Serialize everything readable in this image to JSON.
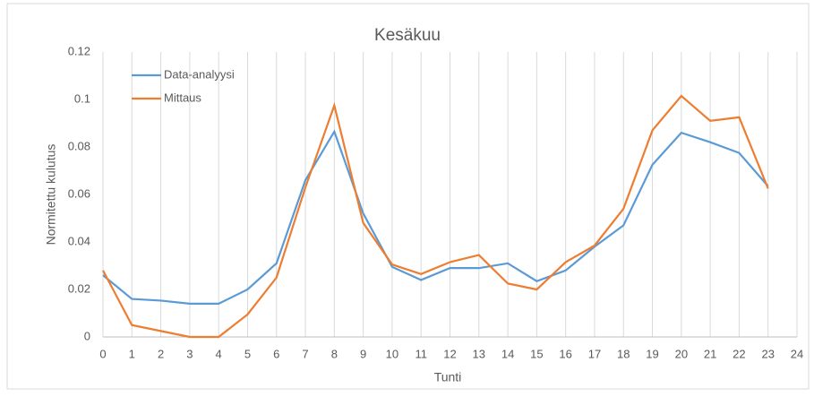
{
  "chart_data": {
    "type": "line",
    "title": "Kesäkuu",
    "x_label": "Tunti",
    "y_label": "Normitettu kulutus",
    "x": [
      0,
      1,
      2,
      3,
      4,
      5,
      6,
      7,
      8,
      9,
      10,
      11,
      12,
      13,
      14,
      15,
      16,
      17,
      18,
      19,
      20,
      21,
      22,
      23
    ],
    "series": [
      {
        "name": "Data-analyysi",
        "color": "#5b9bd5",
        "values": [
          0.026,
          0.016,
          0.0153,
          0.014,
          0.014,
          0.02,
          0.031,
          0.066,
          0.0865,
          0.052,
          0.0295,
          0.024,
          0.029,
          0.029,
          0.031,
          0.0235,
          0.028,
          0.038,
          0.047,
          0.0725,
          0.086,
          0.082,
          0.0775,
          0.0635
        ]
      },
      {
        "name": "Mittaus",
        "color": "#ed7d31",
        "values": [
          0.028,
          0.005,
          0.0025,
          0,
          0,
          0.0095,
          0.025,
          0.063,
          0.0975,
          0.048,
          0.0305,
          0.0265,
          0.0315,
          0.0345,
          0.0225,
          0.02,
          0.0315,
          0.0385,
          0.054,
          0.087,
          0.1015,
          0.091,
          0.0925,
          0.0625
        ]
      }
    ],
    "xlim": [
      0,
      24
    ],
    "xticks": [
      0,
      1,
      2,
      3,
      4,
      5,
      6,
      7,
      8,
      9,
      10,
      11,
      12,
      13,
      14,
      15,
      16,
      17,
      18,
      19,
      20,
      21,
      22,
      23,
      24
    ],
    "ylim": [
      0,
      0.12
    ],
    "yticks": [
      0,
      0.02,
      0.04,
      0.06,
      0.08,
      0.1,
      0.12
    ],
    "grid": "x",
    "legend": "upper left"
  }
}
